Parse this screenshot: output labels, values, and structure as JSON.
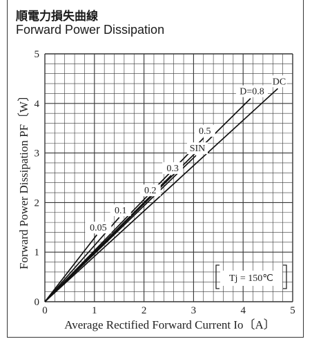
{
  "title_jp": "順電力損失曲線",
  "title_en": "Forward Power Dissipation",
  "chart_data": {
    "type": "line",
    "xlabel": "Average Rectified Forward Current Io〔A〕",
    "ylabel": "Forward Power Dissipation PF〔W〕",
    "xlim": [
      0,
      5
    ],
    "ylim": [
      0,
      5
    ],
    "x_ticks": [
      "0",
      "1",
      "2",
      "3",
      "4",
      "5"
    ],
    "y_ticks": [
      "0",
      "1",
      "2",
      "3",
      "4",
      "5"
    ],
    "grid": true,
    "condition": "Tj = 150℃",
    "series": [
      {
        "name": "0.05",
        "x": [
          0,
          1.05
        ],
        "y": [
          0,
          1.35
        ]
      },
      {
        "name": "0.1",
        "x": [
          0,
          1.5
        ],
        "y": [
          0,
          1.7
        ]
      },
      {
        "name": "0.2",
        "x": [
          0,
          2.1
        ],
        "y": [
          0,
          2.1
        ]
      },
      {
        "name": "0.3",
        "x": [
          0,
          2.55
        ],
        "y": [
          0,
          2.55
        ]
      },
      {
        "name": "SIN",
        "x": [
          0,
          3.05
        ],
        "y": [
          0,
          2.95
        ]
      },
      {
        "name": "0.5",
        "x": [
          0,
          3.2
        ],
        "y": [
          0,
          3.3
        ]
      },
      {
        "name": "D=0.8",
        "x": [
          0,
          4.15
        ],
        "y": [
          0,
          4.1
        ]
      },
      {
        "name": "DC",
        "x": [
          0,
          4.7
        ],
        "y": [
          0,
          4.3
        ]
      }
    ]
  }
}
